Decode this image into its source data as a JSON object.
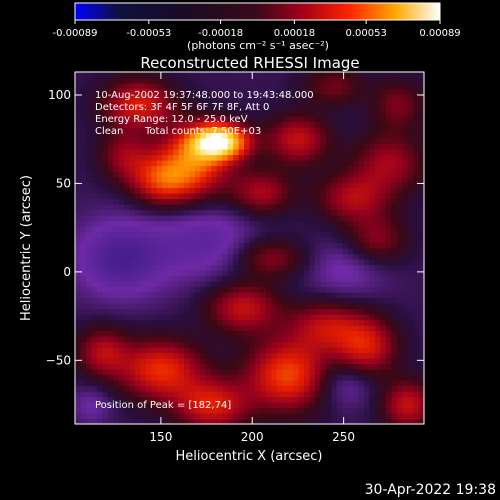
{
  "colorbar": {
    "tick_labels": [
      "-0.00089",
      "-0.00053",
      "-0.00018",
      "0.00018",
      "0.00053",
      "0.00089"
    ],
    "tick_values": [
      -0.00089,
      -0.00053,
      -0.00018,
      0.00018,
      0.00053,
      0.00089
    ],
    "range": [
      -0.00089,
      0.00089
    ],
    "units_label": "(photons cm⁻² s⁻¹ asec⁻²)",
    "colormap": [
      "#0000ff",
      "#000000",
      "#6e2aa6",
      "#b3003a",
      "#ff2a00",
      "#ff9a00",
      "#ffffff"
    ]
  },
  "chart_data": {
    "type": "heatmap",
    "title": "Reconstructed RHESSI Image",
    "xlabel": "Heliocentric X (arcsec)",
    "ylabel": "Heliocentric Y (arcsec)",
    "xlim": [
      103,
      294
    ],
    "ylim": [
      -86,
      113
    ],
    "xticks": [
      150,
      200,
      250
    ],
    "xtick_labels": [
      "150",
      "200",
      "250"
    ],
    "yticks": [
      -50,
      0,
      50,
      100
    ],
    "ytick_labels": [
      "−50",
      "0",
      "50",
      "100"
    ],
    "blobs": [
      {
        "x": 182,
        "y": 74,
        "sx": 11,
        "sy": 7,
        "v": 0.00089
      },
      {
        "x": 168,
        "y": 62,
        "sx": 14,
        "sy": 14,
        "v": 0.0005
      },
      {
        "x": 150,
        "y": 52,
        "sx": 12,
        "sy": 10,
        "v": 0.0004
      },
      {
        "x": 138,
        "y": 95,
        "sx": 14,
        "sy": 10,
        "v": 0.0004
      },
      {
        "x": 130,
        "y": 66,
        "sx": 10,
        "sy": 10,
        "v": 0.00025
      },
      {
        "x": 205,
        "y": 45,
        "sx": 12,
        "sy": 9,
        "v": 0.0003
      },
      {
        "x": 225,
        "y": 75,
        "sx": 12,
        "sy": 10,
        "v": 0.00035
      },
      {
        "x": 255,
        "y": 42,
        "sx": 14,
        "sy": 10,
        "v": 0.0003
      },
      {
        "x": 275,
        "y": 62,
        "sx": 14,
        "sy": 12,
        "v": 0.00028
      },
      {
        "x": 280,
        "y": 95,
        "sx": 10,
        "sy": 10,
        "v": 0.00022
      },
      {
        "x": 245,
        "y": 105,
        "sx": 12,
        "sy": 8,
        "v": 0.0002
      },
      {
        "x": 210,
        "y": 8,
        "sx": 14,
        "sy": 8,
        "v": 0.00025
      },
      {
        "x": 268,
        "y": 18,
        "sx": 12,
        "sy": 10,
        "v": 0.00025
      },
      {
        "x": 240,
        "y": -30,
        "sx": 14,
        "sy": 10,
        "v": 0.0003
      },
      {
        "x": 195,
        "y": -20,
        "sx": 14,
        "sy": 10,
        "v": 0.00035
      },
      {
        "x": 220,
        "y": -58,
        "sx": 16,
        "sy": 14,
        "v": 0.0005
      },
      {
        "x": 262,
        "y": -42,
        "sx": 12,
        "sy": 12,
        "v": 0.0004
      },
      {
        "x": 150,
        "y": -55,
        "sx": 16,
        "sy": 12,
        "v": 0.00045
      },
      {
        "x": 178,
        "y": -75,
        "sx": 14,
        "sy": 10,
        "v": 0.0004
      },
      {
        "x": 118,
        "y": -45,
        "sx": 10,
        "sy": 10,
        "v": 0.0003
      },
      {
        "x": 285,
        "y": -75,
        "sx": 10,
        "sy": 10,
        "v": 0.00035
      },
      {
        "x": 128,
        "y": 8,
        "sx": 18,
        "sy": 16,
        "v": -0.00025
      },
      {
        "x": 175,
        "y": 18,
        "sx": 20,
        "sy": 16,
        "v": -0.00018
      },
      {
        "x": 252,
        "y": 2,
        "sx": 16,
        "sy": 12,
        "v": -0.00015
      },
      {
        "x": 250,
        "y": -62,
        "sx": 12,
        "sy": 10,
        "v": -0.00018
      },
      {
        "x": 112,
        "y": -75,
        "sx": 8,
        "sy": 8,
        "v": -0.00012
      }
    ],
    "background_value": -8e-05
  },
  "annotations": {
    "time_range": "10-Aug-2002 19:37:48.000 to 19:43:48.000",
    "detectors": "Detectors: 3F 4F 5F 6F 7F 8F, Att 0",
    "energy": "Energy Range: 12.0 - 25.0 keV",
    "clean_label": "Clean",
    "total_counts": "Total counts: 7.50E+03",
    "peak": "Position of Peak = [182,74]"
  },
  "timestamp": "30-Apr-2022 19:38"
}
